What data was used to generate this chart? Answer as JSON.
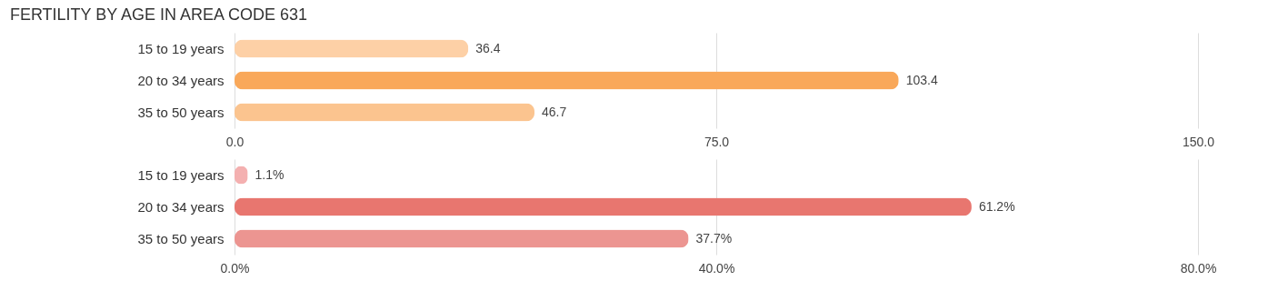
{
  "chart_data": [
    {
      "type": "bar",
      "orientation": "horizontal",
      "title": "FERTILITY BY AGE IN AREA CODE 631",
      "categories": [
        "15 to 19 years",
        "20 to 34 years",
        "35 to 50 years"
      ],
      "values": [
        36.4,
        103.4,
        46.7
      ],
      "colors": [
        "#fdd0a6",
        "#f9a85a",
        "#fbc48f"
      ],
      "xlim": [
        0,
        150
      ],
      "xticks": [
        {
          "value": 0,
          "label": "0.0"
        },
        {
          "value": 75,
          "label": "75.0"
        },
        {
          "value": 150,
          "label": "150.0"
        }
      ],
      "grid": "x",
      "data_labels": true
    },
    {
      "type": "bar",
      "orientation": "horizontal",
      "categories": [
        "15 to 19 years",
        "20 to 34 years",
        "35 to 50 years"
      ],
      "values": [
        1.1,
        61.2,
        37.7
      ],
      "value_labels": [
        "1.1%",
        "61.2%",
        "37.7%"
      ],
      "colors": [
        "#f4b0b0",
        "#e8766f",
        "#ec9591"
      ],
      "xlim": [
        0,
        80
      ],
      "xticks": [
        {
          "value": 0,
          "label": "0.0%"
        },
        {
          "value": 40,
          "label": "40.0%"
        },
        {
          "value": 80,
          "label": "80.0%"
        }
      ],
      "grid": "x"
    }
  ]
}
